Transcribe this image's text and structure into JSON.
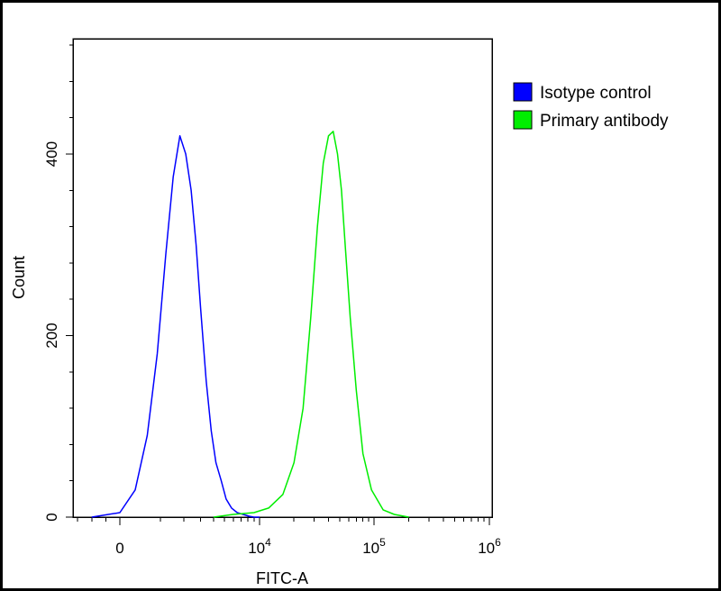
{
  "chart_data": {
    "type": "line",
    "title": "",
    "xlabel": "FITC-A",
    "ylabel": "Count",
    "x_scale": "logicle",
    "xlim": [
      -1000,
      1000000
    ],
    "ylim": [
      0,
      520
    ],
    "grid": false,
    "legend_position": "top-right",
    "x_ticks": [
      {
        "value": 0,
        "label": "0",
        "base": "0",
        "exponent": ""
      },
      {
        "value": 10000,
        "label": "10^4",
        "base": "10",
        "exponent": "4"
      },
      {
        "value": 100000,
        "label": "10^5",
        "base": "10",
        "exponent": "5"
      },
      {
        "value": 1000000,
        "label": "10^6",
        "base": "10",
        "exponent": "6"
      }
    ],
    "y_ticks": [
      {
        "value": 0,
        "label": "0"
      },
      {
        "value": 200,
        "label": "200"
      },
      {
        "value": 400,
        "label": "400"
      }
    ],
    "series": [
      {
        "name": "Isotype control",
        "color": "#0000ff",
        "x": [
          -600,
          0,
          300,
          600,
          900,
          1200,
          1500,
          1800,
          2100,
          2400,
          2700,
          3000,
          3400,
          3800,
          4200,
          4700,
          5200,
          5800,
          6500,
          7300,
          8200,
          9000,
          10000
        ],
        "y": [
          0,
          5,
          30,
          90,
          180,
          290,
          375,
          420,
          400,
          360,
          300,
          230,
          150,
          95,
          60,
          40,
          20,
          10,
          5,
          3,
          1,
          0,
          0
        ]
      },
      {
        "name": "Primary antibody",
        "color": "#00ee00",
        "x": [
          4000,
          6000,
          9000,
          12000,
          16000,
          20000,
          24000,
          28000,
          32000,
          36000,
          40000,
          44000,
          48000,
          52000,
          56000,
          62000,
          70000,
          80000,
          95000,
          120000,
          150000,
          200000
        ],
        "y": [
          0,
          3,
          5,
          10,
          25,
          60,
          120,
          220,
          320,
          390,
          420,
          425,
          400,
          360,
          300,
          220,
          140,
          70,
          30,
          8,
          3,
          0
        ]
      }
    ]
  }
}
